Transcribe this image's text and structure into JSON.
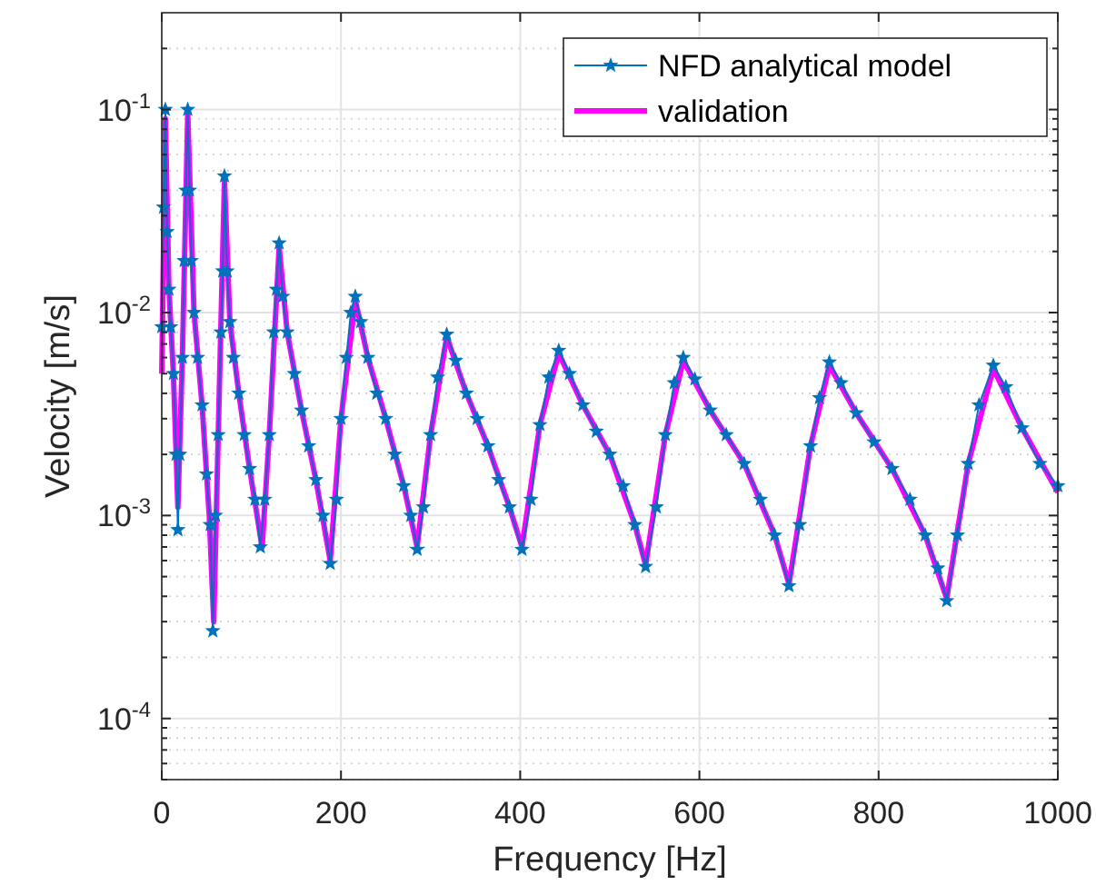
{
  "chart_data": {
    "type": "line",
    "xlabel": "Frequency [Hz]",
    "ylabel": "Velocity [m/s]",
    "log": "y",
    "grid": true,
    "legend": "top right",
    "xlim": [
      0,
      1000
    ],
    "xticks": [
      0,
      200,
      400,
      600,
      800,
      1000
    ],
    "ylim": [
      5e-05,
      0.3
    ],
    "yticks": [
      {
        "value": 0.0001,
        "label": "10$^{-4}$"
      },
      {
        "value": 0.001,
        "label": "10$^{-3}$"
      },
      {
        "value": 0.01,
        "label": "10$^{-2}$"
      },
      {
        "value": 0.1,
        "label": "10$^{-1}$"
      }
    ],
    "series": [
      {
        "name": "NFD analytical model",
        "color": "#0072bd",
        "marker": "star",
        "x": [
          0,
          2,
          4,
          6,
          8,
          10,
          13,
          16,
          18,
          20,
          23,
          25,
          27,
          29,
          31,
          33,
          36,
          40,
          45,
          50,
          54,
          57,
          60,
          63,
          66,
          68,
          70,
          73,
          76,
          80,
          86,
          92,
          98,
          104,
          110,
          115,
          120,
          125,
          128,
          131,
          135,
          140,
          148,
          156,
          164,
          172,
          180,
          188,
          195,
          200,
          206,
          211,
          216,
          222,
          230,
          240,
          250,
          260,
          270,
          278,
          285,
          292,
          300,
          308,
          318,
          328,
          340,
          352,
          364,
          376,
          388,
          402,
          412,
          422,
          432,
          443,
          455,
          470,
          485,
          500,
          515,
          528,
          540,
          552,
          562,
          572,
          582,
          595,
          612,
          630,
          650,
          668,
          684,
          700,
          712,
          724,
          734,
          745,
          758,
          775,
          795,
          815,
          835,
          852,
          866,
          876,
          888,
          900,
          912,
          928,
          942,
          960,
          980,
          1000
        ],
        "values": [
          0.0085,
          0.033,
          0.1,
          0.025,
          0.013,
          0.0085,
          0.005,
          0.002,
          0.00085,
          0.002,
          0.006,
          0.018,
          0.04,
          0.1,
          0.04,
          0.018,
          0.01,
          0.006,
          0.0035,
          0.0016,
          0.0009,
          0.00027,
          0.001,
          0.0025,
          0.008,
          0.016,
          0.047,
          0.016,
          0.009,
          0.006,
          0.004,
          0.0025,
          0.0017,
          0.0012,
          0.0007,
          0.0012,
          0.0025,
          0.008,
          0.013,
          0.022,
          0.012,
          0.008,
          0.005,
          0.0033,
          0.0022,
          0.0015,
          0.001,
          0.00058,
          0.0012,
          0.003,
          0.006,
          0.01,
          0.012,
          0.009,
          0.006,
          0.004,
          0.003,
          0.002,
          0.0014,
          0.001,
          0.00068,
          0.0011,
          0.0025,
          0.0048,
          0.0078,
          0.0058,
          0.004,
          0.003,
          0.0022,
          0.0015,
          0.0011,
          0.00068,
          0.0012,
          0.0028,
          0.0048,
          0.0065,
          0.005,
          0.0035,
          0.0026,
          0.002,
          0.0014,
          0.0009,
          0.00056,
          0.0011,
          0.0025,
          0.0045,
          0.006,
          0.0047,
          0.0033,
          0.0025,
          0.0018,
          0.0012,
          0.0008,
          0.00045,
          0.0009,
          0.0022,
          0.0038,
          0.0057,
          0.0045,
          0.0032,
          0.0023,
          0.0017,
          0.0012,
          0.0008,
          0.00055,
          0.00038,
          0.0008,
          0.0018,
          0.0035,
          0.0055,
          0.0043,
          0.0027,
          0.0018,
          0.0014
        ]
      },
      {
        "name": "validation",
        "color": "#ff00ff",
        "marker": "none",
        "x": [
          0,
          4,
          8,
          13,
          18,
          23,
          29,
          36,
          45,
          53,
          58,
          63,
          70,
          76,
          86,
          98,
          112,
          120,
          131,
          140,
          156,
          172,
          188,
          200,
          216,
          230,
          250,
          270,
          285,
          300,
          318,
          340,
          364,
          388,
          402,
          422,
          443,
          470,
          500,
          528,
          540,
          562,
          582,
          612,
          650,
          684,
          700,
          724,
          745,
          775,
          815,
          852,
          876,
          900,
          928,
          960,
          1000
        ],
        "values": [
          0.005,
          0.09,
          0.013,
          0.005,
          0.0011,
          0.006,
          0.095,
          0.01,
          0.0035,
          0.001,
          0.0003,
          0.0025,
          0.045,
          0.009,
          0.004,
          0.0017,
          0.0007,
          0.0025,
          0.021,
          0.008,
          0.0033,
          0.0015,
          0.0006,
          0.003,
          0.0115,
          0.006,
          0.003,
          0.0014,
          0.0007,
          0.0025,
          0.0076,
          0.004,
          0.0022,
          0.0011,
          0.0007,
          0.0028,
          0.0063,
          0.0035,
          0.002,
          0.0009,
          0.00057,
          0.0025,
          0.0058,
          0.0033,
          0.0018,
          0.0008,
          0.00046,
          0.0022,
          0.0055,
          0.0032,
          0.0017,
          0.0008,
          0.00039,
          0.0018,
          0.0053,
          0.0027,
          0.0013
        ]
      }
    ]
  }
}
